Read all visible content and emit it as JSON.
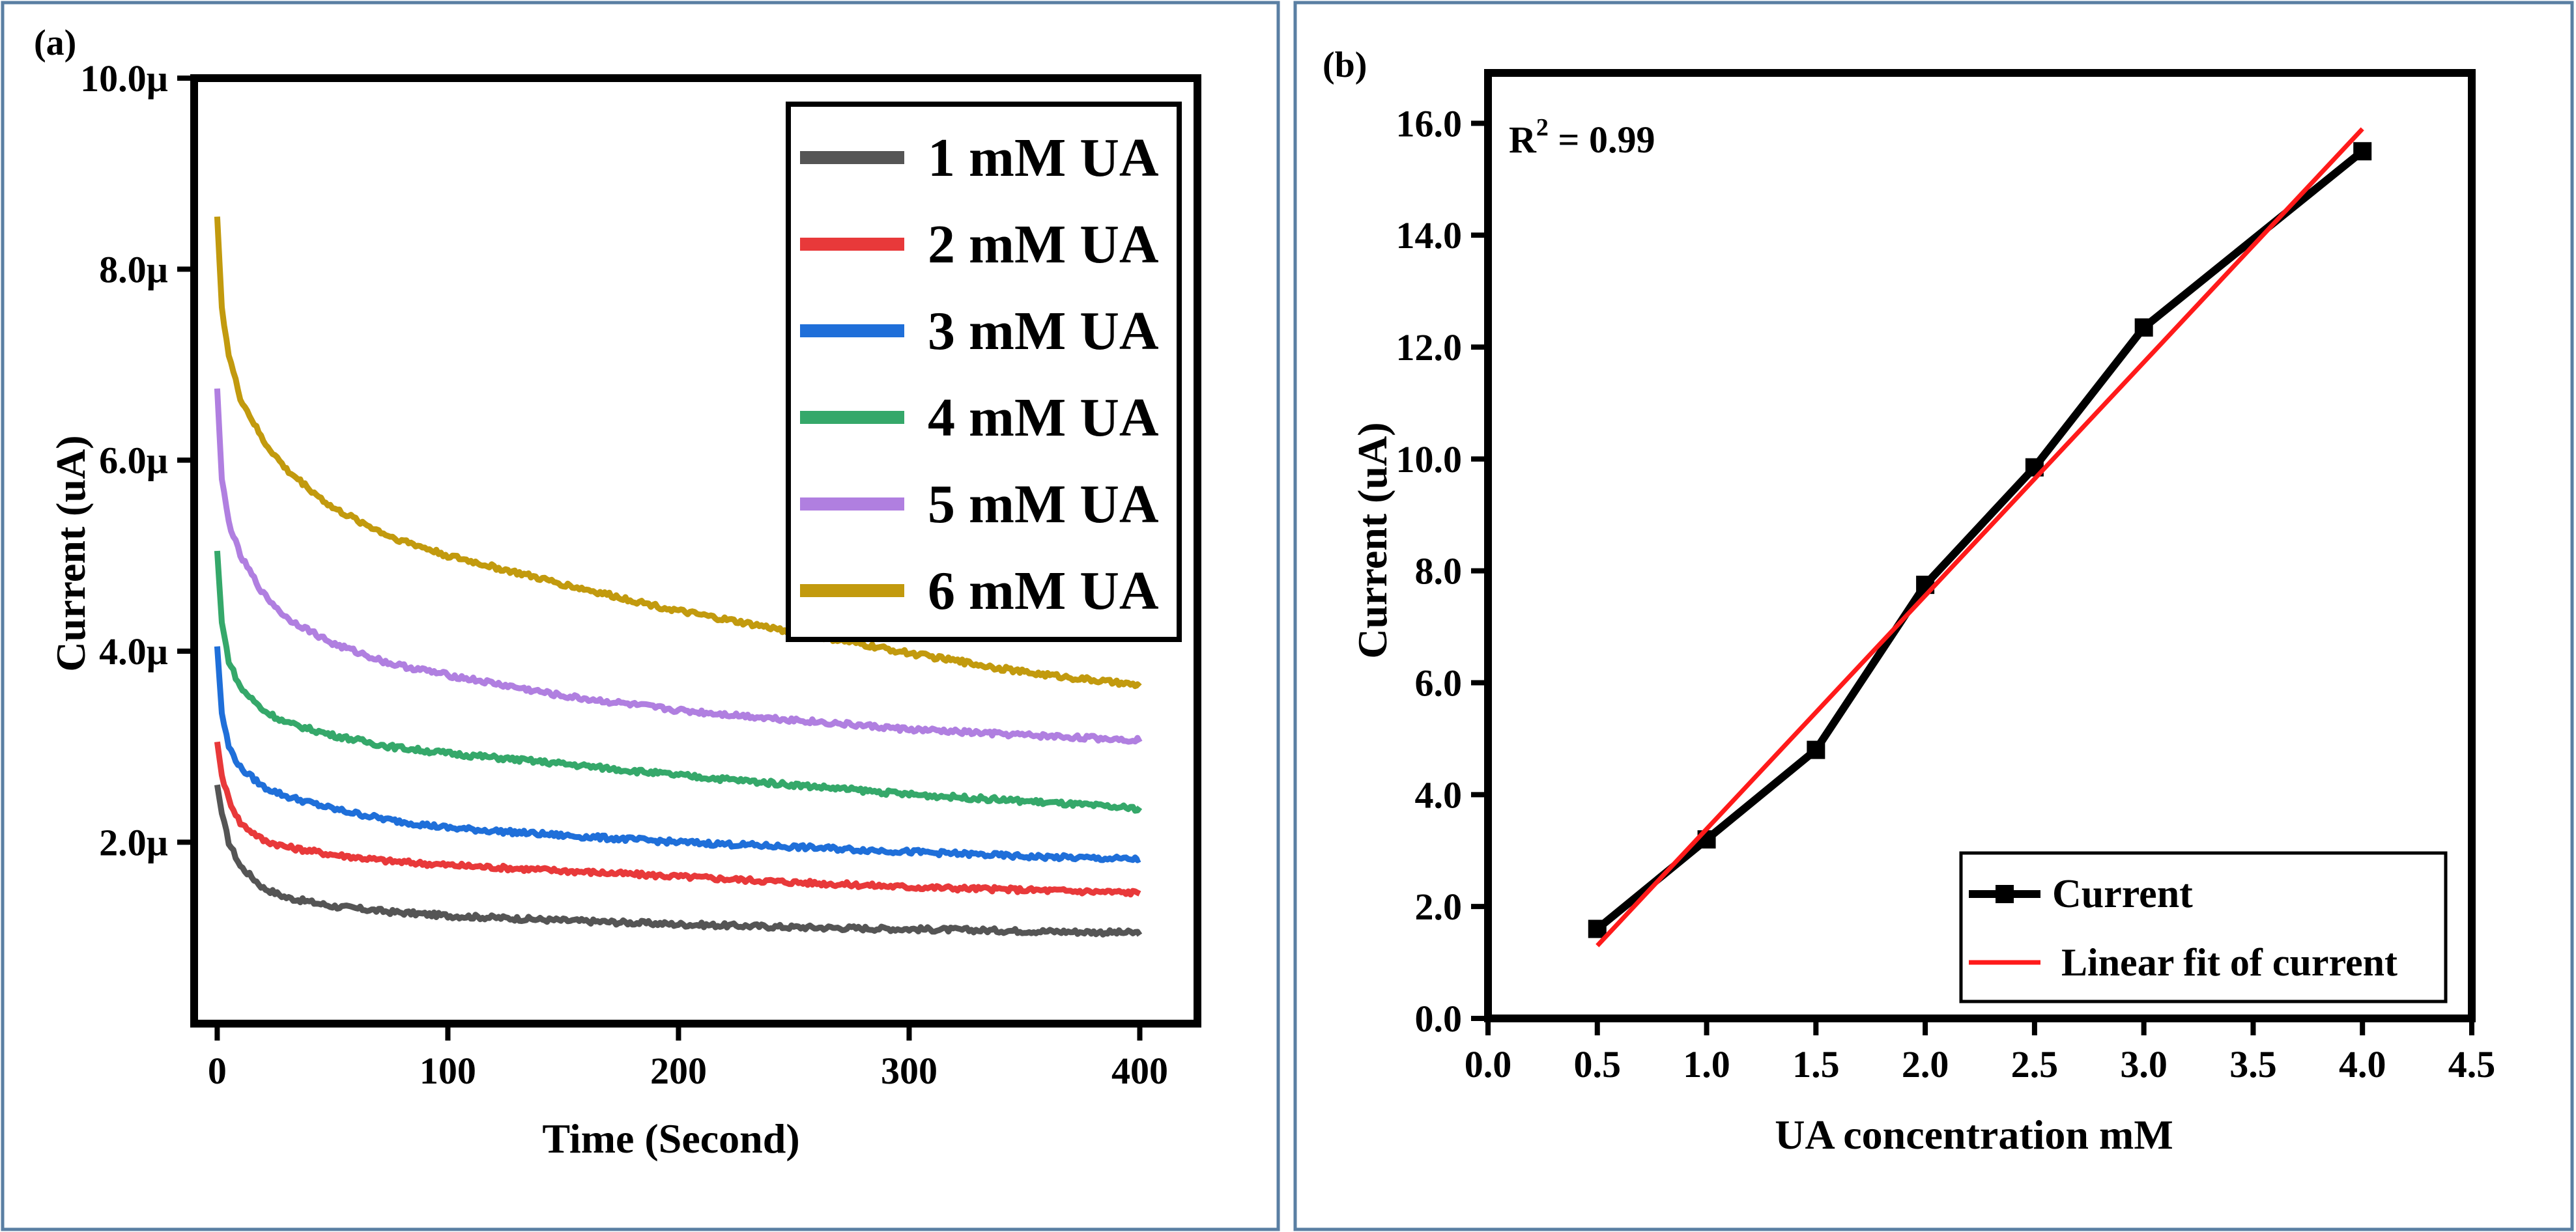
{
  "chart_data": [
    {
      "panel_label": "(a)",
      "type": "line",
      "xlabel": "Time (Second)",
      "ylabel": "Current (uA)",
      "xlim": [
        -10,
        425
      ],
      "ylim": [
        0.1,
        10.0
      ],
      "x_ticks": [
        0,
        100,
        200,
        300,
        400
      ],
      "x_tick_labels": [
        "0",
        "100",
        "200",
        "300",
        "400"
      ],
      "y_ticks": [
        2.0,
        4.0,
        6.0,
        8.0,
        10.0
      ],
      "y_tick_labels": [
        "2.0µ",
        "4.0µ",
        "6.0µ",
        "8.0µ",
        "10.0µ"
      ],
      "legend_position": "top-right",
      "x": [
        0,
        2,
        5,
        10,
        20,
        30,
        50,
        75,
        100,
        150,
        200,
        250,
        300,
        350,
        400
      ],
      "series": [
        {
          "name": "1 mM UA",
          "color": "#555555",
          "values": [
            2.6,
            2.3,
            2.0,
            1.75,
            1.52,
            1.42,
            1.33,
            1.27,
            1.23,
            1.18,
            1.14,
            1.11,
            1.09,
            1.07,
            1.05
          ]
        },
        {
          "name": "2 mM UA",
          "color": "#e8393a",
          "values": [
            3.05,
            2.7,
            2.45,
            2.2,
            2.02,
            1.95,
            1.87,
            1.8,
            1.76,
            1.7,
            1.64,
            1.58,
            1.53,
            1.5,
            1.47
          ]
        },
        {
          "name": "3 mM UA",
          "color": "#1f6fd9",
          "values": [
            4.05,
            3.35,
            3.0,
            2.78,
            2.58,
            2.48,
            2.35,
            2.23,
            2.15,
            2.07,
            2.0,
            1.95,
            1.9,
            1.85,
            1.82
          ]
        },
        {
          "name": "4 mM UA",
          "color": "#35a86a",
          "values": [
            5.05,
            4.3,
            3.9,
            3.62,
            3.38,
            3.25,
            3.12,
            3.0,
            2.93,
            2.82,
            2.7,
            2.6,
            2.5,
            2.43,
            2.35
          ]
        },
        {
          "name": "5 mM UA",
          "color": "#b07fe0",
          "values": [
            6.75,
            5.8,
            5.35,
            5.0,
            4.6,
            4.35,
            4.08,
            3.87,
            3.75,
            3.53,
            3.38,
            3.28,
            3.18,
            3.12,
            3.07
          ]
        },
        {
          "name": "6 mM UA",
          "color": "#c29a0e",
          "values": [
            8.55,
            7.6,
            7.1,
            6.65,
            6.2,
            5.9,
            5.5,
            5.2,
            5.0,
            4.7,
            4.42,
            4.2,
            3.98,
            3.78,
            3.64
          ]
        }
      ]
    },
    {
      "panel_label": "(b)",
      "type": "line",
      "xlabel": "UA concentration mM",
      "ylabel": "Current (uA)",
      "xlim": [
        0.0,
        4.5
      ],
      "ylim": [
        0.0,
        16.9
      ],
      "x_ticks": [
        0,
        0.5,
        1.0,
        1.5,
        2.0,
        2.5,
        3.0,
        3.5,
        4.0,
        4.5
      ],
      "x_tick_labels": [
        "0.0",
        "0.5",
        "1.0",
        "1.5",
        "2.0",
        "2.5",
        "3.0",
        "3.5",
        "4.0",
        "4.5"
      ],
      "y_ticks": [
        0,
        2,
        4,
        6,
        8,
        10,
        12,
        14,
        16
      ],
      "y_tick_labels": [
        "0.0",
        "2.0",
        "4.0",
        "6.0",
        "8.0",
        "10.0",
        "12.0",
        "14.0",
        "16.0"
      ],
      "annotation": {
        "prefix": "R",
        "superscript": "2",
        "suffix": " = 0.99"
      },
      "legend_position": "bottom-right",
      "series": [
        {
          "name": "Current",
          "color": "#000000",
          "marker": "square",
          "x": [
            0.5,
            1.0,
            1.5,
            2.0,
            2.5,
            3.0,
            4.0
          ],
          "values": [
            1.6,
            3.2,
            4.8,
            7.75,
            9.85,
            12.35,
            15.5
          ]
        },
        {
          "name": "Linear fit of current",
          "color": "#ff1a1a",
          "marker": "none",
          "x": [
            0.5,
            4.0
          ],
          "values": [
            1.3,
            15.9
          ]
        }
      ]
    }
  ]
}
